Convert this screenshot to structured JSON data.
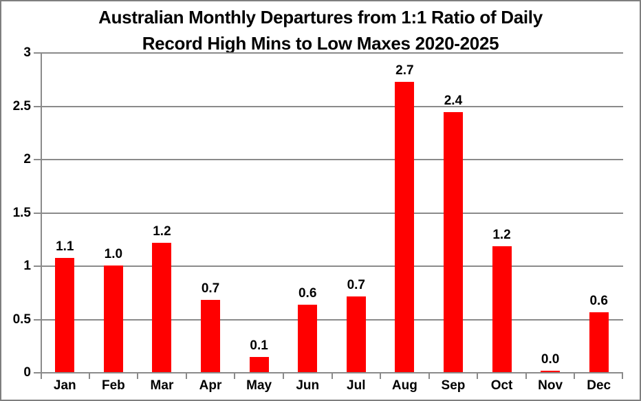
{
  "frame": {
    "border_color": "#7f7f7f",
    "background_color": "#ffffff"
  },
  "chart_data": {
    "type": "bar",
    "title": "Australian Monthly Departures from 1:1 Ratio of Daily Record High Mins to Low Maxes 2020-2025",
    "title_lines": [
      "Australian Monthly Departures from 1:1 Ratio of Daily",
      "Record High Mins to Low Maxes 2020-2025"
    ],
    "categories": [
      "Jan",
      "Feb",
      "Mar",
      "Apr",
      "May",
      "Jun",
      "Jul",
      "Aug",
      "Sep",
      "Oct",
      "Nov",
      "Dec"
    ],
    "values": [
      1.07,
      1.0,
      1.21,
      0.68,
      0.14,
      0.63,
      0.71,
      2.72,
      2.44,
      1.18,
      0.01,
      0.56
    ],
    "data_labels": [
      "1.1",
      "1.0",
      "1.2",
      "0.7",
      "0.1",
      "0.6",
      "0.7",
      "2.7",
      "2.4",
      "1.2",
      "0.0",
      "0.6"
    ],
    "y_ticks": [
      0,
      0.5,
      1,
      1.5,
      2,
      2.5,
      3
    ],
    "y_tick_labels": [
      "0",
      "0.5",
      "1",
      "1.5",
      "2",
      "2.5",
      "3"
    ],
    "ylim": [
      0,
      3
    ],
    "xlabel": "",
    "ylabel": "",
    "legend": "none",
    "grid": true,
    "bar_color": "#ff0000",
    "grid_color": "#8a8a8a",
    "axis_color": "#8a8a8a",
    "text_color": "#000000"
  }
}
